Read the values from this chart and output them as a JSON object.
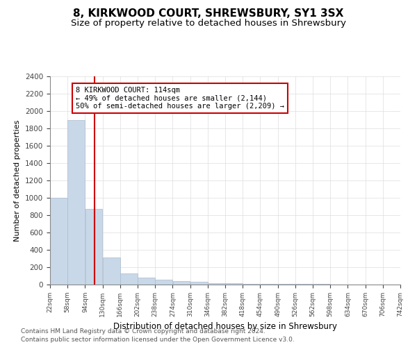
{
  "title": "8, KIRKWOOD COURT, SHREWSBURY, SY1 3SX",
  "subtitle": "Size of property relative to detached houses in Shrewsbury",
  "xlabel": "Distribution of detached houses by size in Shrewsbury",
  "ylabel": "Number of detached properties",
  "property_size": 114,
  "annotation_line1": "8 KIRKWOOD COURT: 114sqm",
  "annotation_line2": "← 49% of detached houses are smaller (2,144)",
  "annotation_line3": "50% of semi-detached houses are larger (2,209) →",
  "bar_color": "#c8d8e8",
  "bar_edge_color": "#aabbcc",
  "vline_color": "#cc0000",
  "annotation_box_color": "#cc0000",
  "bin_edges": [
    22,
    58,
    94,
    130,
    166,
    202,
    238,
    274,
    310,
    346,
    382,
    418,
    454,
    490,
    526,
    562,
    598,
    634,
    670,
    706,
    742
  ],
  "bar_heights": [
    1000,
    1900,
    870,
    310,
    130,
    80,
    55,
    40,
    30,
    20,
    15,
    12,
    10,
    8,
    6,
    5,
    4,
    3,
    2,
    1
  ],
  "ylim": [
    0,
    2400
  ],
  "yticks": [
    0,
    200,
    400,
    600,
    800,
    1000,
    1200,
    1400,
    1600,
    1800,
    2000,
    2200,
    2400
  ],
  "footnote1": "Contains HM Land Registry data © Crown copyright and database right 2024.",
  "footnote2": "Contains public sector information licensed under the Open Government Licence v3.0.",
  "title_fontsize": 11,
  "subtitle_fontsize": 9.5,
  "background_color": "#ffffff",
  "grid_color": "#dddddd"
}
